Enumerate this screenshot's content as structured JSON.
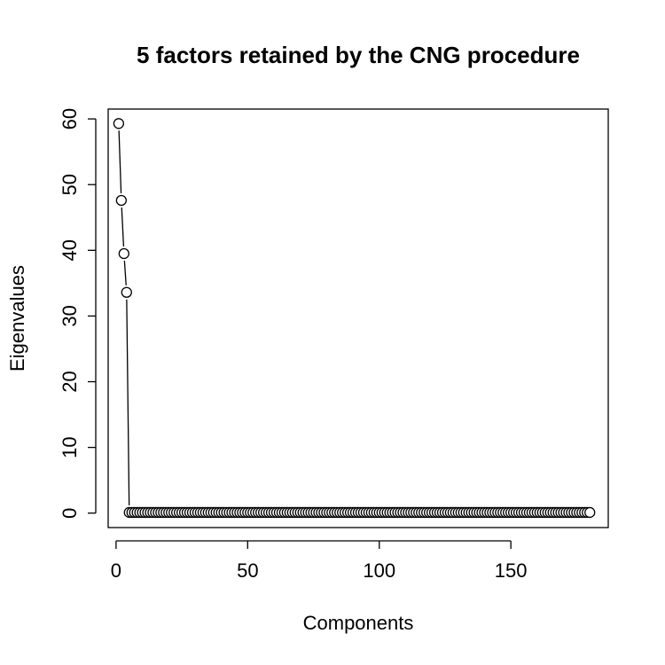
{
  "chart_data": {
    "type": "line",
    "title": "5 factors retained by the CNG procedure",
    "xlabel": "Components",
    "ylabel": "Eigenvalues",
    "xlim": [
      -3,
      187
    ],
    "ylim": [
      -2.2,
      61.5
    ],
    "x_ticks": [
      0,
      50,
      100,
      150
    ],
    "x_tick_labels": [
      "0",
      "50",
      "100",
      "150"
    ],
    "y_ticks": [
      0,
      10,
      20,
      30,
      40,
      50,
      60
    ],
    "y_tick_labels": [
      "0",
      "10",
      "20",
      "30",
      "40",
      "50",
      "60"
    ],
    "grid": false,
    "legend": "none",
    "marker": "open-circle",
    "line_style": "overplotted lines and points",
    "point_color": "#000000",
    "n_components": 180,
    "series": [
      {
        "x_start": 1,
        "x_end": 180,
        "leading_values": [
          59.3,
          47.6,
          39.5,
          33.6
        ],
        "remaining_value": 0.1
      }
    ]
  }
}
